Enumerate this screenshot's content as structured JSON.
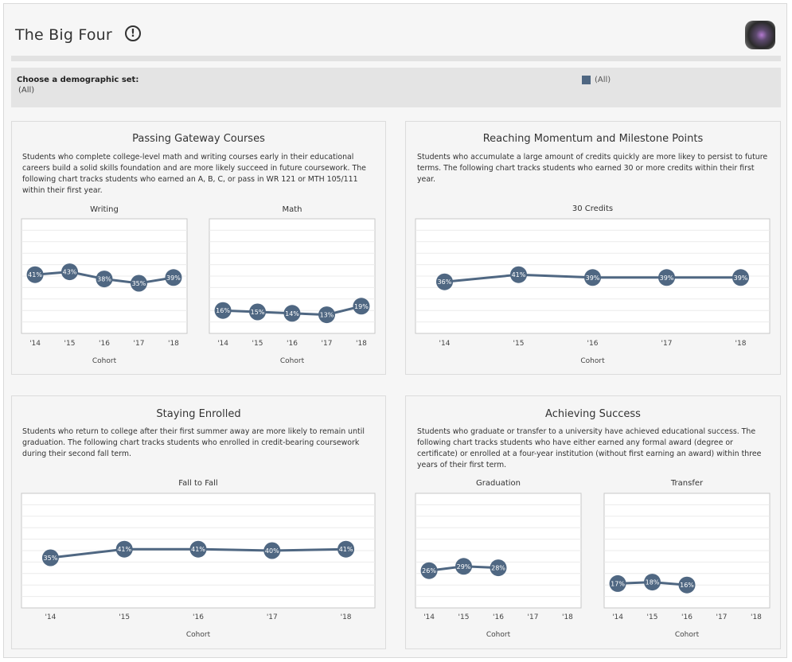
{
  "header": {
    "title": "The Big Four",
    "info_icon": "exclamation-circle-icon",
    "logo_icon": "cube-logo-icon"
  },
  "filter": {
    "label": "Choose a demographic set:",
    "value": "(All)",
    "legend_label": "(All)",
    "legend_color": "#4f6782"
  },
  "colors": {
    "series": "#4f6782",
    "grid": "#ebebeb",
    "point_text": "#ffffff"
  },
  "panels": [
    {
      "title": "Passing Gateway Courses",
      "description": "Students who complete college-level math and writing courses early in their educational careers build a solid skills foundation and are more likely succeed in future coursework. The following chart tracks students who earned an A, B, C, or pass in WR 121 or MTH 105/111 within their first year."
    },
    {
      "title": "Reaching Momentum and Milestone Points",
      "description": "Students who accumulate a large amount of credits quickly are more likey to persist to future terms. The following chart tracks students who earned 30 or more credits within their first year."
    },
    {
      "title": "Staying Enrolled",
      "description": "Students who return to college after their first summer away are more likely to remain until graduation. The following chart tracks students who enrolled in credit-bearing coursework during their second fall term."
    },
    {
      "title": "Achieving Success",
      "description": "Students who graduate or transfer to a university have achieved educational success. The following chart tracks students who have either earned any formal award (degree or certificate) or enrolled at a four-year institution (without first earning an award) within three years of their first term."
    }
  ],
  "chart_data": [
    {
      "type": "line",
      "title": "Writing",
      "xlabel": "Cohort",
      "categories": [
        "'14",
        "'15",
        "'16",
        "'17",
        "'18"
      ],
      "values": [
        41,
        43,
        38,
        35,
        39
      ],
      "labels": [
        "41%",
        "43%",
        "38%",
        "35%",
        "39%"
      ],
      "ylim": [
        0,
        80
      ]
    },
    {
      "type": "line",
      "title": "Math",
      "xlabel": "Cohort",
      "categories": [
        "'14",
        "'15",
        "'16",
        "'17",
        "'18"
      ],
      "values": [
        16,
        15,
        14,
        13,
        19
      ],
      "labels": [
        "16%",
        "15%",
        "14%",
        "13%",
        "19%"
      ],
      "ylim": [
        0,
        80
      ]
    },
    {
      "type": "line",
      "title": "30 Credits",
      "xlabel": "Cohort",
      "categories": [
        "'14",
        "'15",
        "'16",
        "'17",
        "'18"
      ],
      "values": [
        36,
        41,
        39,
        39,
        39
      ],
      "labels": [
        "36%",
        "41%",
        "39%",
        "39%",
        "39%"
      ],
      "ylim": [
        0,
        80
      ]
    },
    {
      "type": "line",
      "title": "Fall to Fall",
      "xlabel": "Cohort",
      "categories": [
        "'14",
        "'15",
        "'16",
        "'17",
        "'18"
      ],
      "values": [
        35,
        41,
        41,
        40,
        41
      ],
      "labels": [
        "35%",
        "41%",
        "41%",
        "40%",
        "41%"
      ],
      "ylim": [
        0,
        80
      ]
    },
    {
      "type": "line",
      "title": "Graduation",
      "xlabel": "Cohort",
      "categories": [
        "'14",
        "'15",
        "'16",
        "'17",
        "'18"
      ],
      "values": [
        26,
        29,
        28,
        null,
        null
      ],
      "labels": [
        "26%",
        "29%",
        "28%",
        "",
        ""
      ],
      "ylim": [
        0,
        80
      ]
    },
    {
      "type": "line",
      "title": "Transfer",
      "xlabel": "Cohort",
      "categories": [
        "'14",
        "'15",
        "'16",
        "'17",
        "'18"
      ],
      "values": [
        17,
        18,
        16,
        null,
        null
      ],
      "labels": [
        "17%",
        "18%",
        "16%",
        "",
        ""
      ],
      "ylim": [
        0,
        80
      ]
    }
  ]
}
